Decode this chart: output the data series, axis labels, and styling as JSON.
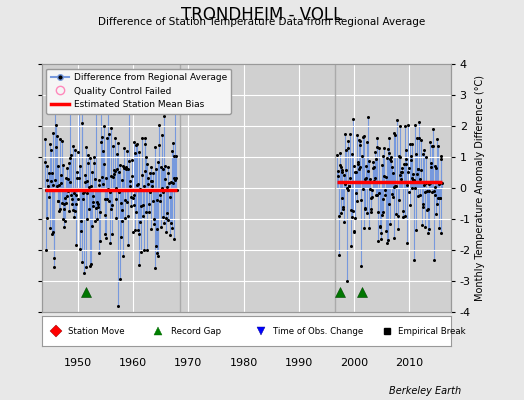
{
  "title": "TRONDHEIM - VOLL",
  "subtitle": "Difference of Station Temperature Data from Regional Average",
  "ylabel_right": "Monthly Temperature Anomaly Difference (°C)",
  "credit": "Berkeley Earth",
  "ylim": [
    -4,
    4
  ],
  "xlim": [
    1943.5,
    2017.5
  ],
  "yticks": [
    -4,
    -3,
    -2,
    -1,
    0,
    1,
    2,
    3,
    4
  ],
  "xticks": [
    1950,
    1960,
    1970,
    1980,
    1990,
    2000,
    2010
  ],
  "bg_color": "#e8e8e8",
  "plot_bg_color": "#d0d0d0",
  "grid_color": "#ffffff",
  "period1_start": 1944,
  "period1_end": 1967,
  "period2_start": 1997,
  "period2_end": 2015,
  "bias1": -0.07,
  "bias2": 0.18,
  "record_gaps": [
    1951.5,
    1997.5,
    2001.5
  ],
  "vline1": 1968.5,
  "vline2": 1996.5,
  "line_color": "#7799dd",
  "dot_color": "#000000",
  "bias_color": "#ff0000",
  "gap_marker_color": "#007700",
  "qc_marker_color": "#ff88bb",
  "legend_bg": "#f5f5f5",
  "bot_legend_bg": "#ffffff",
  "amplitude1": 1.25,
  "amplitude2": 1.0,
  "seed1": 10,
  "seed2": 20
}
